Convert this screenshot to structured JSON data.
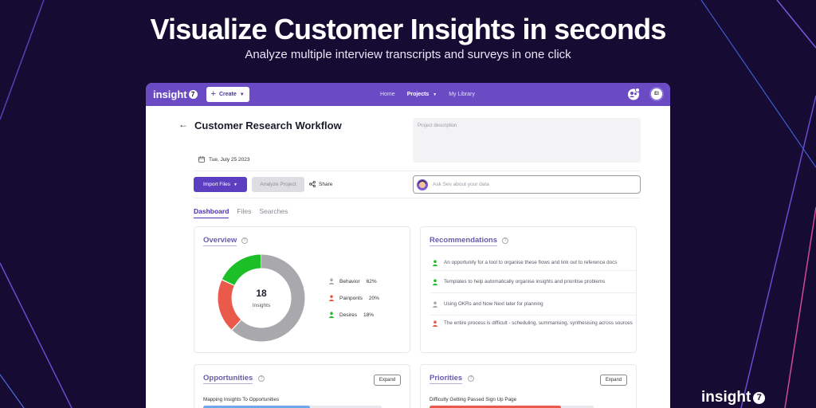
{
  "hero": {
    "title": "Visualize Customer Insights in seconds",
    "subtitle": "Analyze multiple interview transcripts and surveys in one click"
  },
  "brand": {
    "name": "insight",
    "mark": "7"
  },
  "navbar": {
    "logo": "insight",
    "logo_mark": "7",
    "create_label": "Create",
    "links": [
      {
        "label": "Home",
        "active": false
      },
      {
        "label": "Projects",
        "active": true
      },
      {
        "label": "My Library",
        "active": false
      }
    ],
    "avatar_initials": "EI"
  },
  "project": {
    "title": "Customer Research Workflow",
    "description_placeholder": "Project description",
    "date": "Tue, July 25 2023"
  },
  "actions": {
    "import_label": "Import Files",
    "analyze_label": "Analyze Project",
    "share_label": "Share",
    "ask_placeholder": "Ask Sev about your data"
  },
  "tabs": [
    {
      "label": "Dashboard",
      "active": true
    },
    {
      "label": "Files",
      "active": false
    },
    {
      "label": "Searches",
      "active": false
    }
  ],
  "overview": {
    "title": "Overview",
    "total": "18",
    "total_label": "Insights",
    "segments": [
      {
        "label": "Behavior",
        "value": "62%",
        "percent": 62,
        "color": "#a9a9ad"
      },
      {
        "label": "Painponts",
        "value": "20%",
        "percent": 20,
        "color": "#ea5a4b"
      },
      {
        "label": "Desires",
        "value": "18%",
        "percent": 18,
        "color": "#1dbf27"
      }
    ]
  },
  "recommendations": {
    "title": "Recommendations",
    "items": [
      {
        "text": "An opportunity for a tool to organise these flows and link out to reference docs",
        "color": "#1dbf27"
      },
      {
        "text": "Templates to help automatically organise insights and prioritise problems",
        "color": "#1dbf27"
      },
      {
        "text": "Using OKRs and Now Next later for planning",
        "color": "#a9a9ad"
      },
      {
        "text": "The entire process is difficult - scheduling, summarising, synthesising across sources",
        "color": "#ea5a4b"
      }
    ]
  },
  "opportunities": {
    "title": "Opportunities",
    "expand_label": "Expand",
    "first_item": "Mapping Insights To Opportunities",
    "first_fraction": 0.6,
    "bar_color": "#6ea8ec"
  },
  "priorities": {
    "title": "Priorities",
    "expand_label": "Expand",
    "first_item": "Difficulty Getting Passed Sign Up Page",
    "first_fraction": 0.8,
    "bar_color": "#ea5a4b"
  }
}
